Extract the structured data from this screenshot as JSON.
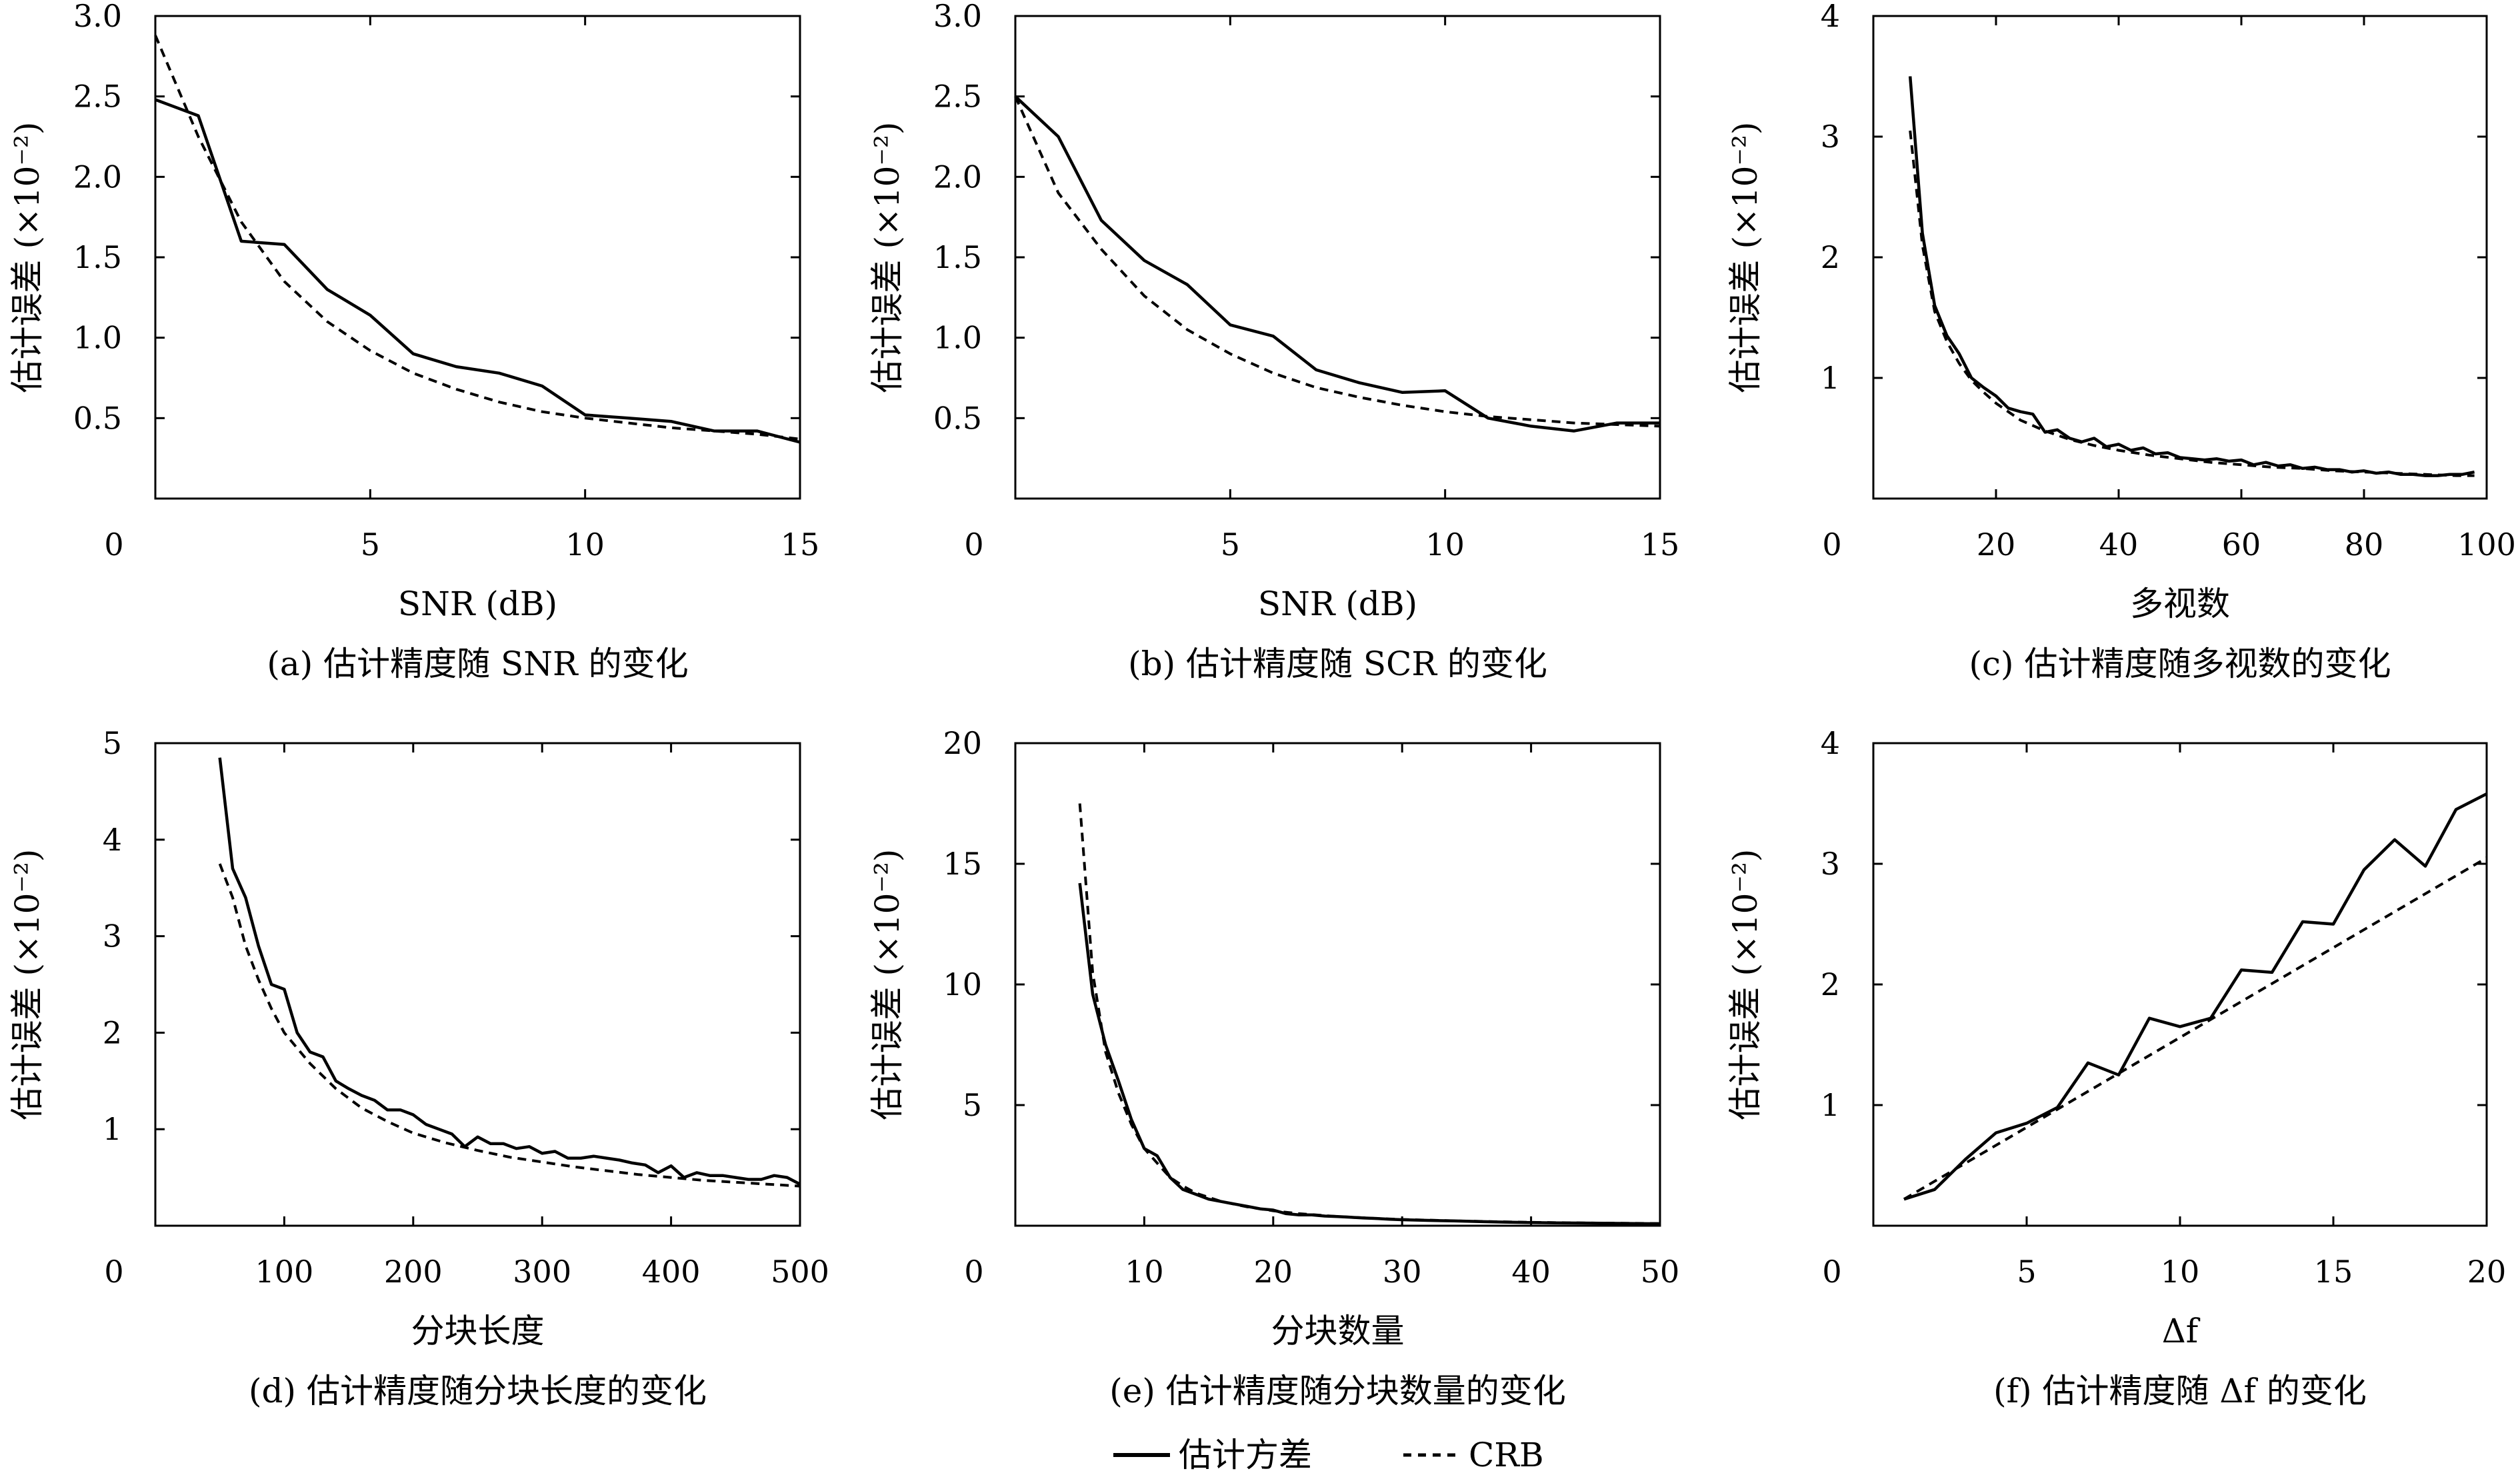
{
  "legend": {
    "solid_label": "估计方差",
    "dashed_label": "CRB"
  },
  "chart_data": [
    {
      "type": "line",
      "caption": "(a) 估计精度随 SNR 的变化",
      "xlabel": "SNR (dB)",
      "ylabel_text": "估计误差",
      "ylabel_unit": "(×10⁻²)",
      "xlim": [
        0,
        15
      ],
      "ylim": [
        0,
        3
      ],
      "xticks": [
        "0",
        "5",
        "10",
        "15"
      ],
      "xtick_values": [
        0,
        5,
        10,
        15
      ],
      "yticks": [
        "3.0",
        "2.5",
        "2.0",
        "1.5",
        "1.0",
        "0.5"
      ],
      "ytick_values": [
        3.0,
        2.5,
        2.0,
        1.5,
        1.0,
        0.5
      ],
      "series": [
        {
          "name": "估计方差",
          "style": "solid",
          "x": [
            0,
            1,
            2,
            3,
            4,
            5,
            6,
            7,
            8,
            9,
            10,
            11,
            12,
            13,
            14,
            15
          ],
          "y": [
            2.48,
            2.38,
            1.6,
            1.58,
            1.3,
            1.14,
            0.9,
            0.82,
            0.78,
            0.7,
            0.52,
            0.5,
            0.48,
            0.42,
            0.42,
            0.35
          ]
        },
        {
          "name": "CRB",
          "style": "dashed",
          "x": [
            0,
            1,
            2,
            3,
            4,
            5,
            6,
            7,
            8,
            9,
            10,
            11,
            12,
            13,
            14,
            15
          ],
          "y": [
            2.88,
            2.25,
            1.72,
            1.35,
            1.1,
            0.92,
            0.78,
            0.68,
            0.6,
            0.54,
            0.5,
            0.47,
            0.44,
            0.42,
            0.4,
            0.37
          ]
        }
      ]
    },
    {
      "type": "line",
      "caption": "(b) 估计精度随 SCR 的变化",
      "xlabel": "SNR (dB)",
      "ylabel_text": "估计误差",
      "ylabel_unit": "(×10⁻²)",
      "xlim": [
        0,
        15
      ],
      "ylim": [
        0,
        3
      ],
      "xticks": [
        "0",
        "5",
        "10",
        "15"
      ],
      "xtick_values": [
        0,
        5,
        10,
        15
      ],
      "yticks": [
        "3.0",
        "2.5",
        "2.0",
        "1.5",
        "1.0",
        "0.5"
      ],
      "ytick_values": [
        3.0,
        2.5,
        2.0,
        1.5,
        1.0,
        0.5
      ],
      "series": [
        {
          "name": "估计方差",
          "style": "solid",
          "x": [
            0,
            1,
            2,
            3,
            4,
            5,
            6,
            7,
            8,
            9,
            10,
            11,
            12,
            13,
            14,
            15
          ],
          "y": [
            2.5,
            2.25,
            1.73,
            1.48,
            1.33,
            1.08,
            1.01,
            0.8,
            0.72,
            0.66,
            0.67,
            0.5,
            0.45,
            0.42,
            0.47,
            0.47
          ]
        },
        {
          "name": "CRB",
          "style": "dashed",
          "x": [
            0,
            1,
            2,
            3,
            4,
            5,
            6,
            7,
            8,
            9,
            10,
            11,
            12,
            13,
            14,
            15
          ],
          "y": [
            2.5,
            1.9,
            1.55,
            1.26,
            1.05,
            0.9,
            0.78,
            0.69,
            0.63,
            0.58,
            0.54,
            0.51,
            0.49,
            0.47,
            0.46,
            0.45
          ]
        }
      ]
    },
    {
      "type": "line",
      "caption": "(c) 估计精度随多视数的变化",
      "xlabel": "多视数",
      "ylabel_text": "估计误差",
      "ylabel_unit": "(×10⁻²)",
      "xlim": [
        0,
        100
      ],
      "ylim": [
        0,
        4
      ],
      "xticks": [
        "0",
        "20",
        "40",
        "60",
        "80",
        "100"
      ],
      "xtick_values": [
        0,
        20,
        40,
        60,
        80,
        100
      ],
      "yticks": [
        "4",
        "3",
        "2",
        "1"
      ],
      "ytick_values": [
        4,
        3,
        2,
        1
      ],
      "series": [
        {
          "name": "估计方差",
          "style": "solid",
          "x": [
            6,
            8,
            10,
            12,
            14,
            16,
            18,
            20,
            22,
            24,
            26,
            28,
            30,
            32,
            34,
            36,
            38,
            40,
            42,
            44,
            46,
            48,
            50,
            52,
            54,
            56,
            58,
            60,
            62,
            64,
            66,
            68,
            70,
            72,
            74,
            76,
            78,
            80,
            82,
            84,
            86,
            88,
            90,
            92,
            94,
            96,
            98
          ],
          "y": [
            3.5,
            2.2,
            1.6,
            1.35,
            1.2,
            1.0,
            0.92,
            0.85,
            0.75,
            0.72,
            0.7,
            0.55,
            0.57,
            0.5,
            0.47,
            0.5,
            0.43,
            0.45,
            0.4,
            0.42,
            0.37,
            0.38,
            0.34,
            0.33,
            0.32,
            0.33,
            0.31,
            0.32,
            0.28,
            0.3,
            0.27,
            0.28,
            0.25,
            0.26,
            0.24,
            0.24,
            0.22,
            0.23,
            0.21,
            0.22,
            0.2,
            0.2,
            0.19,
            0.19,
            0.2,
            0.2,
            0.22
          ]
        },
        {
          "name": "CRB",
          "style": "dashed",
          "x": [
            6,
            8,
            10,
            12,
            14,
            16,
            18,
            20,
            24,
            28,
            32,
            36,
            40,
            45,
            50,
            55,
            60,
            65,
            70,
            75,
            80,
            85,
            90,
            95,
            98
          ],
          "y": [
            3.05,
            2.1,
            1.55,
            1.3,
            1.12,
            0.98,
            0.88,
            0.79,
            0.65,
            0.56,
            0.49,
            0.44,
            0.4,
            0.36,
            0.33,
            0.3,
            0.28,
            0.26,
            0.25,
            0.23,
            0.22,
            0.21,
            0.2,
            0.19,
            0.19
          ]
        }
      ]
    },
    {
      "type": "line",
      "caption": "(d) 估计精度随分块长度的变化",
      "xlabel": "分块长度",
      "ylabel_text": "估计误差",
      "ylabel_unit": "(×10⁻²)",
      "xlim": [
        0,
        500
      ],
      "ylim": [
        0,
        5
      ],
      "xticks": [
        "0",
        "100",
        "200",
        "300",
        "400",
        "500"
      ],
      "xtick_values": [
        0,
        100,
        200,
        300,
        400,
        500
      ],
      "yticks": [
        "5",
        "4",
        "3",
        "2",
        "1"
      ],
      "ytick_values": [
        5,
        4,
        3,
        2,
        1
      ],
      "series": [
        {
          "name": "估计方差",
          "style": "solid",
          "x": [
            50,
            60,
            70,
            80,
            90,
            100,
            110,
            120,
            130,
            140,
            150,
            160,
            170,
            180,
            190,
            200,
            210,
            220,
            230,
            240,
            250,
            260,
            270,
            280,
            290,
            300,
            310,
            320,
            330,
            340,
            350,
            360,
            370,
            380,
            390,
            400,
            410,
            420,
            430,
            440,
            450,
            460,
            470,
            480,
            490,
            500
          ],
          "y": [
            4.85,
            3.7,
            3.4,
            2.9,
            2.5,
            2.45,
            2.0,
            1.8,
            1.75,
            1.5,
            1.42,
            1.35,
            1.3,
            1.2,
            1.2,
            1.15,
            1.05,
            1.0,
            0.95,
            0.82,
            0.92,
            0.85,
            0.85,
            0.8,
            0.82,
            0.75,
            0.77,
            0.7,
            0.7,
            0.72,
            0.7,
            0.68,
            0.65,
            0.63,
            0.55,
            0.62,
            0.5,
            0.55,
            0.52,
            0.52,
            0.5,
            0.48,
            0.48,
            0.52,
            0.5,
            0.43
          ]
        },
        {
          "name": "CRB",
          "style": "dashed",
          "x": [
            50,
            60,
            70,
            80,
            90,
            100,
            120,
            140,
            160,
            180,
            200,
            225,
            250,
            275,
            300,
            325,
            350,
            375,
            400,
            425,
            450,
            475,
            500
          ],
          "y": [
            3.75,
            3.4,
            2.9,
            2.55,
            2.25,
            2.0,
            1.68,
            1.42,
            1.22,
            1.08,
            0.96,
            0.86,
            0.78,
            0.71,
            0.66,
            0.61,
            0.57,
            0.53,
            0.5,
            0.47,
            0.45,
            0.43,
            0.41
          ]
        }
      ]
    },
    {
      "type": "line",
      "caption": "(e) 估计精度随分块数量的变化",
      "xlabel": "分块数量",
      "ylabel_text": "估计误差",
      "ylabel_unit": "(×10⁻²)",
      "xlim": [
        0,
        50
      ],
      "ylim": [
        0,
        20
      ],
      "xticks": [
        "0",
        "10",
        "20",
        "30",
        "40",
        "50"
      ],
      "xtick_values": [
        0,
        10,
        20,
        30,
        40,
        50
      ],
      "yticks": [
        "20",
        "15",
        "10",
        "5"
      ],
      "ytick_values": [
        20,
        15,
        10,
        5
      ],
      "series": [
        {
          "name": "估计方差",
          "style": "solid",
          "x": [
            5,
            6,
            7,
            8,
            9,
            10,
            11,
            12,
            13,
            14,
            15,
            16,
            17,
            18,
            19,
            20,
            21,
            22,
            23,
            24,
            25,
            26,
            27,
            28,
            29,
            30,
            32,
            34,
            36,
            38,
            40,
            42,
            44,
            46,
            48,
            50
          ],
          "y": [
            14.2,
            9.6,
            7.5,
            6.0,
            4.4,
            3.2,
            2.9,
            2.0,
            1.5,
            1.3,
            1.1,
            1.0,
            0.9,
            0.8,
            0.7,
            0.65,
            0.5,
            0.45,
            0.45,
            0.4,
            0.38,
            0.35,
            0.32,
            0.3,
            0.27,
            0.25,
            0.22,
            0.2,
            0.17,
            0.15,
            0.13,
            0.12,
            0.11,
            0.1,
            0.09,
            0.08
          ]
        },
        {
          "name": "CRB",
          "style": "dashed",
          "x": [
            5,
            6,
            7,
            8,
            9,
            10,
            11,
            12,
            13,
            14,
            16,
            18,
            20,
            22,
            25,
            28,
            30,
            35,
            40,
            45,
            50
          ],
          "y": [
            17.5,
            10.5,
            7.2,
            5.5,
            4.2,
            3.2,
            2.6,
            2.0,
            1.65,
            1.35,
            1.0,
            0.78,
            0.62,
            0.5,
            0.38,
            0.3,
            0.26,
            0.19,
            0.14,
            0.11,
            0.09
          ]
        }
      ]
    },
    {
      "type": "line",
      "caption": "(f) 估计精度随 Δf 的变化",
      "xlabel": "Δf",
      "ylabel_text": "估计误差",
      "ylabel_unit": "(×10⁻²)",
      "xlim": [
        0,
        20
      ],
      "ylim": [
        0,
        4
      ],
      "xticks": [
        "0",
        "5",
        "10",
        "15",
        "20"
      ],
      "xtick_values": [
        0,
        5,
        10,
        15,
        20
      ],
      "yticks": [
        "4",
        "3",
        "2",
        "1"
      ],
      "ytick_values": [
        4,
        3,
        2,
        1
      ],
      "series": [
        {
          "name": "估计方差",
          "style": "solid",
          "x": [
            1,
            2,
            3,
            4,
            5,
            6,
            7,
            8,
            9,
            10,
            11,
            12,
            13,
            14,
            15,
            16,
            17,
            18,
            19,
            20
          ],
          "y": [
            0.22,
            0.3,
            0.55,
            0.77,
            0.85,
            0.98,
            1.35,
            1.25,
            1.72,
            1.65,
            1.72,
            2.12,
            2.1,
            2.52,
            2.5,
            2.95,
            3.2,
            2.98,
            3.45,
            3.58
          ]
        },
        {
          "name": "CRB",
          "style": "dashed",
          "x": [
            1,
            20
          ],
          "y": [
            0.22,
            3.05
          ]
        }
      ]
    }
  ]
}
